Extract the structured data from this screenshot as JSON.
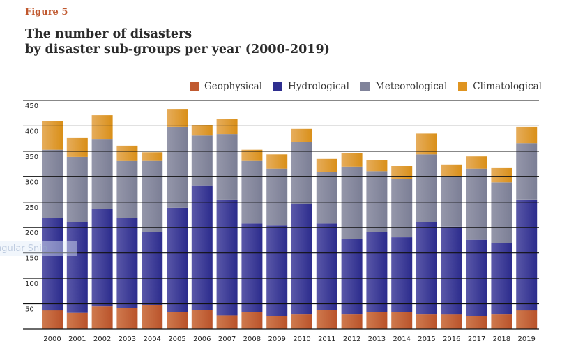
{
  "figure_label": "Figure 5",
  "title_lines": [
    "The number of disasters",
    "by disaster sub-groups per year (2000-2019)"
  ],
  "watermark_text": "ngular Snip",
  "colors": {
    "Geophysical": "#c05a30",
    "Hydrological": "#2e2e8f",
    "Meteorological": "#80839a",
    "Climatological": "#df9420"
  },
  "chart_data": {
    "type": "bar",
    "stacked": true,
    "title": "The number of disasters by disaster sub-groups per year (2000-2019)",
    "xlabel": "",
    "ylabel": "",
    "ylim": [
      0,
      450
    ],
    "yticks": [
      50,
      100,
      150,
      200,
      250,
      300,
      350,
      400,
      450
    ],
    "grid": true,
    "legend_position": "top-right",
    "categories": [
      "2000",
      "2001",
      "2002",
      "2003",
      "2004",
      "2005",
      "2006",
      "2007",
      "2008",
      "2009",
      "2010",
      "2011",
      "2012",
      "2013",
      "2014",
      "2015",
      "2016",
      "2017",
      "2018",
      "2019"
    ],
    "series": [
      {
        "name": "Geophysical",
        "values": [
          37,
          32,
          45,
          42,
          48,
          33,
          37,
          27,
          33,
          26,
          30,
          37,
          30,
          33,
          33,
          30,
          30,
          26,
          30,
          37
        ]
      },
      {
        "name": "Hydrological",
        "values": [
          182,
          179,
          191,
          177,
          143,
          206,
          246,
          227,
          175,
          178,
          216,
          171,
          147,
          159,
          148,
          181,
          172,
          150,
          139,
          217
        ]
      },
      {
        "name": "Meteorological",
        "values": [
          134,
          128,
          137,
          112,
          140,
          159,
          98,
          130,
          123,
          112,
          122,
          101,
          143,
          119,
          115,
          133,
          98,
          140,
          120,
          112
        ]
      },
      {
        "name": "Climatological",
        "values": [
          57,
          37,
          48,
          30,
          17,
          34,
          21,
          30,
          22,
          28,
          26,
          26,
          27,
          21,
          25,
          41,
          24,
          24,
          28,
          32
        ]
      }
    ]
  }
}
